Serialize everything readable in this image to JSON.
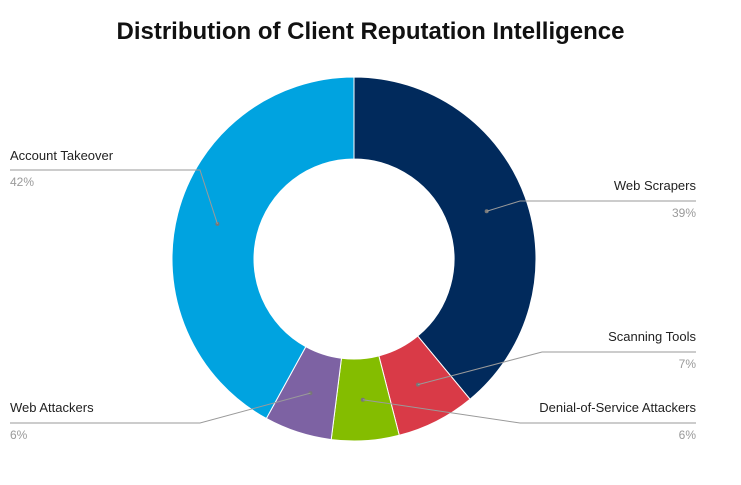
{
  "chart_data": {
    "type": "pie",
    "variant": "donut",
    "title": "Distribution of Client Reputation Intelligence",
    "slices": [
      {
        "label": "Web Scrapers",
        "display": "39%",
        "value": 39,
        "color": "#012a5c"
      },
      {
        "label": "Scanning Tools",
        "display": "7%",
        "value": 7,
        "color": "#d93a47"
      },
      {
        "label": "Denial-of-Service Attackers",
        "display": "6%",
        "value": 6,
        "color": "#84bd00"
      },
      {
        "label": "Web Attackers",
        "display": "6%",
        "value": 6,
        "color": "#7d62a3"
      },
      {
        "label": "Account Takeover",
        "display": "42%",
        "value": 42,
        "color": "#00a3e0"
      }
    ],
    "legend": "none"
  }
}
